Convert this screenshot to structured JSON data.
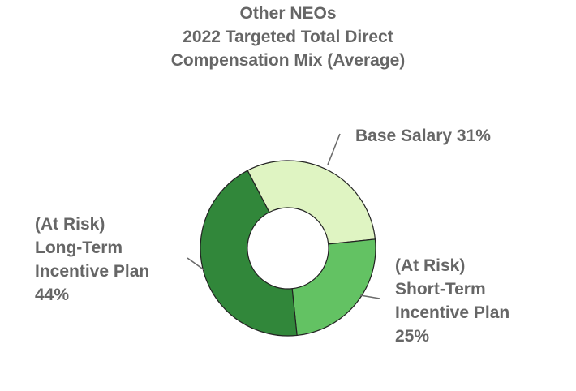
{
  "chart_data": {
    "type": "pie",
    "title_lines": [
      "Other NEOs",
      "2022 Targeted Total Direct",
      "Compensation Mix  (Average)"
    ],
    "slices": [
      {
        "label": "Base Salary",
        "value": 31,
        "color": "#dff4c2",
        "label_lines": [
          "Base Salary 31%"
        ]
      },
      {
        "label": "(At Risk) Short-Term Incentive Plan",
        "value": 25,
        "color": "#63c263",
        "label_lines": [
          "(At Risk)",
          "Short-Term",
          "Incentive Plan",
          "25%"
        ]
      },
      {
        "label": "(At Risk) Long-Term Incentive Plan",
        "value": 44,
        "color": "#31873a",
        "label_lines": [
          "(At Risk)",
          "Long-Term",
          "Incentive Plan",
          "44%"
        ]
      }
    ],
    "donut": true,
    "legend": "none"
  }
}
